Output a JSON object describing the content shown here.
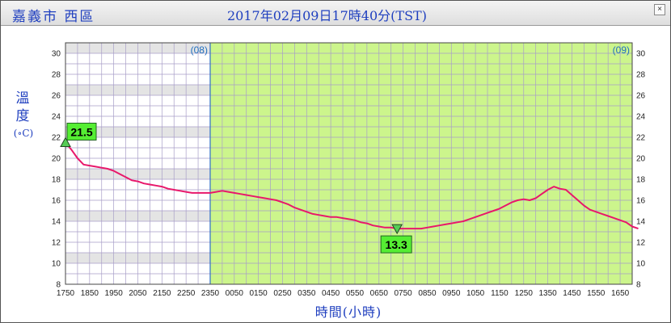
{
  "header": {
    "station": "嘉義市 西區",
    "timestamp": "2017年02月09日17時40分(TST)",
    "close_glyph": "×"
  },
  "axes": {
    "ylabel_line1": "溫",
    "ylabel_line2": "度",
    "yunit": "(∘C)",
    "xlabel": "時間(小時)"
  },
  "chart_data": {
    "type": "line",
    "ylim": [
      8,
      31
    ],
    "yticks": [
      8,
      10,
      12,
      14,
      16,
      18,
      20,
      22,
      24,
      26,
      28,
      30
    ],
    "xticks": [
      "1750",
      "1850",
      "1950",
      "2050",
      "2150",
      "2250",
      "2350",
      "0050",
      "0150",
      "0250",
      "0350",
      "0450",
      "0550",
      "0650",
      "0750",
      "0850",
      "0950",
      "1050",
      "1150",
      "1250",
      "1350",
      "1450",
      "1550",
      "1650"
    ],
    "day_markers": [
      {
        "label": "(08)",
        "at_hour_index": 0
      },
      {
        "label": "(09)",
        "at_hour_index": 23.1
      }
    ],
    "background": {
      "day1_color": "#ffffff",
      "day1_band_color": "#e4e4e4",
      "day2_color": "#ccf58c"
    },
    "series": [
      {
        "color": "#e8186b",
        "x_hours_from_1750": [
          0,
          0.25,
          0.5,
          0.75,
          1,
          1.25,
          1.5,
          1.75,
          2,
          2.25,
          2.5,
          2.75,
          3,
          3.25,
          3.5,
          3.75,
          4,
          4.25,
          4.5,
          4.75,
          5,
          5.25,
          5.5,
          5.75,
          6,
          6.25,
          6.5,
          6.75,
          7,
          7.25,
          7.5,
          7.75,
          8,
          8.25,
          8.5,
          8.75,
          9,
          9.25,
          9.5,
          9.75,
          10,
          10.25,
          10.5,
          10.75,
          11,
          11.25,
          11.5,
          11.75,
          12,
          12.25,
          12.5,
          12.75,
          13,
          13.25,
          13.5,
          13.75,
          14,
          14.25,
          14.5,
          14.75,
          15,
          15.25,
          15.5,
          15.75,
          16,
          16.25,
          16.5,
          16.75,
          17,
          17.25,
          17.5,
          17.75,
          18,
          18.25,
          18.5,
          18.75,
          19,
          19.25,
          19.5,
          19.75,
          20,
          20.25,
          20.5,
          20.75,
          21,
          21.25,
          21.5,
          21.75,
          22,
          22.25,
          22.5,
          22.75,
          23,
          23.25,
          23.5,
          23.75
        ],
        "values": [
          21.5,
          20.8,
          20.0,
          19.4,
          19.3,
          19.2,
          19.1,
          19.0,
          18.8,
          18.5,
          18.2,
          17.9,
          17.8,
          17.6,
          17.5,
          17.4,
          17.3,
          17.1,
          17.0,
          16.9,
          16.8,
          16.7,
          16.7,
          16.7,
          16.7,
          16.8,
          16.9,
          16.8,
          16.7,
          16.6,
          16.5,
          16.4,
          16.3,
          16.2,
          16.1,
          16.0,
          15.8,
          15.6,
          15.3,
          15.1,
          14.9,
          14.7,
          14.6,
          14.5,
          14.4,
          14.4,
          14.3,
          14.2,
          14.1,
          13.9,
          13.8,
          13.6,
          13.5,
          13.4,
          13.4,
          13.3,
          13.3,
          13.3,
          13.3,
          13.3,
          13.4,
          13.5,
          13.6,
          13.7,
          13.8,
          13.9,
          14.0,
          14.2,
          14.4,
          14.6,
          14.8,
          15.0,
          15.2,
          15.5,
          15.8,
          16.0,
          16.1,
          16.0,
          16.2,
          16.6,
          17.0,
          17.3,
          17.1,
          17.0,
          16.5,
          16.0,
          15.5,
          15.1,
          14.9,
          14.7,
          14.5,
          14.3,
          14.1,
          13.9,
          13.5,
          13.3
        ]
      }
    ],
    "annotations": [
      {
        "kind": "max",
        "label": "21.5",
        "x_hours_from_1750": 0,
        "value": 21.5
      },
      {
        "kind": "min",
        "label": "13.3",
        "x_hours_from_1750": 13.75,
        "value": 13.3
      }
    ]
  }
}
